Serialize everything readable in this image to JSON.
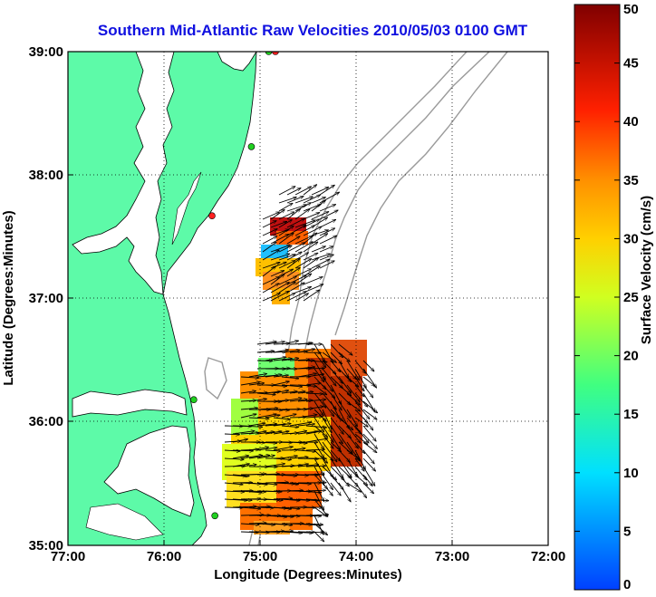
{
  "title": "Southern Mid-Atlantic Raw Velocities 2010/05/03 0100 GMT",
  "xlabel": "Longitude (Degrees:Minutes)",
  "ylabel": "Latitude (Degrees:Minutes)",
  "colorbar": {
    "label": "Surface Velocity (cm/s)",
    "min": 0,
    "max": 50,
    "ticks": [
      "0",
      "5",
      "10",
      "15",
      "20",
      "25",
      "30",
      "35",
      "40",
      "45",
      "50"
    ]
  },
  "x_ticks": [
    "77:00",
    "76:00",
    "75:00",
    "74:00",
    "73:00",
    "72:00"
  ],
  "y_ticks": [
    "39:00",
    "38:00",
    "37:00",
    "36:00",
    "35:00"
  ],
  "chart_data": {
    "type": "map",
    "title": "Southern Mid-Atlantic Raw Velocities 2010/05/03 0100 GMT",
    "xlabel": "Longitude (Degrees:Minutes)",
    "ylabel": "Latitude (Degrees:Minutes)",
    "xlim": [
      -77,
      -72
    ],
    "ylim": [
      35,
      39
    ],
    "grid": true,
    "colors": {
      "land": "#5dfaa8",
      "coast": "#000000",
      "bathymetry": "#9a9a9a",
      "grid": "#000000"
    },
    "stations": [
      {
        "lon": -74.84,
        "lat": 39.0,
        "color": "#ff2020"
      },
      {
        "lon": -74.91,
        "lat": 39.0,
        "color": "#20d020"
      },
      {
        "lon": -75.09,
        "lat": 38.23,
        "color": "#20d020"
      },
      {
        "lon": -75.5,
        "lat": 37.67,
        "color": "#ff2020"
      },
      {
        "lon": -75.69,
        "lat": 36.18,
        "color": "#20d020"
      },
      {
        "lon": -75.47,
        "lat": 35.24,
        "color": "#20d020"
      }
    ]
  }
}
